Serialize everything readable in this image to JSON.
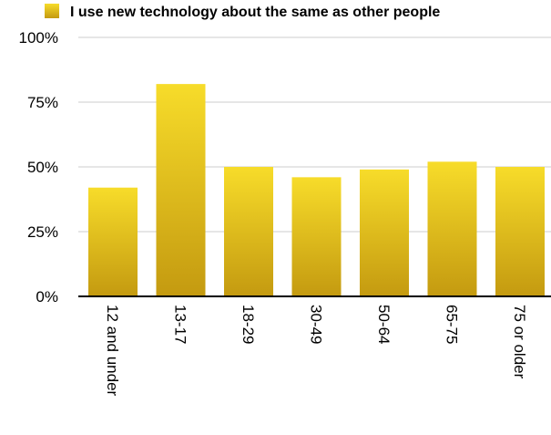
{
  "chart_data": {
    "type": "bar",
    "categories": [
      "12 and under",
      "13-17",
      "18-29",
      "30-49",
      "50-64",
      "65-75",
      "75 or older"
    ],
    "series": [
      {
        "name": "I use new technology about the same as other people",
        "values": [
          42,
          82,
          50,
          46,
          49,
          52,
          50
        ]
      }
    ],
    "yticks": [
      "0%",
      "25%",
      "50%",
      "75%",
      "100%"
    ],
    "ylim": [
      0,
      100
    ],
    "grid": true,
    "legend_position": "top-left",
    "colors": {
      "bar_top": "#F7DC2A",
      "bar_bottom": "#C49A10",
      "grid": "#CCCCCC",
      "axis": "#000000"
    }
  }
}
